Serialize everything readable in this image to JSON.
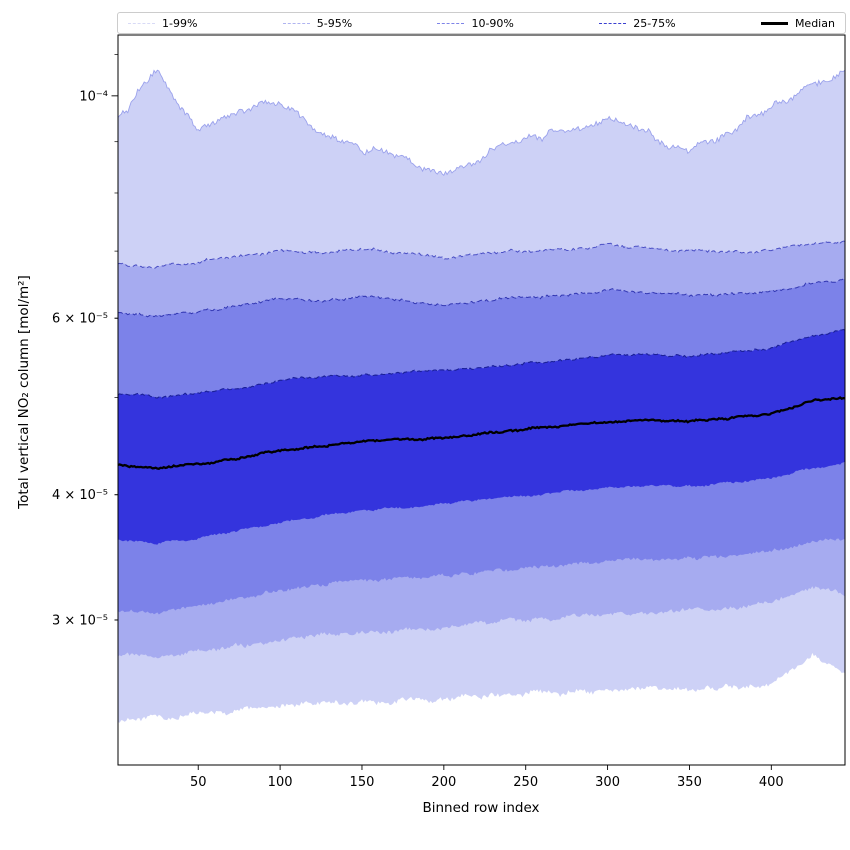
{
  "figure": {
    "background": "#ffffff"
  },
  "legend": {
    "items": [
      {
        "label": "1-99%",
        "color": "#d8daf6",
        "style": "dashed",
        "width": 1.6
      },
      {
        "label": "5-95%",
        "color": "#b0b4f0",
        "style": "dashed",
        "width": 1.6
      },
      {
        "label": "10-90%",
        "color": "#7e84e8",
        "style": "dashed",
        "width": 1.6
      },
      {
        "label": "25-75%",
        "color": "#3a3fd0",
        "style": "dashed",
        "width": 1.6
      },
      {
        "label": "Median",
        "color": "#000000",
        "style": "solid",
        "width": 3
      }
    ]
  },
  "chart_data": {
    "type": "area",
    "title": "",
    "xlabel": "Binned row index",
    "ylabel": "Total vertical NO₂ column [mol/m²]",
    "yscale": "log",
    "xlim": [
      1,
      445
    ],
    "ylim": [
      2.15e-05,
      0.000115
    ],
    "x_ticks": [
      50,
      100,
      150,
      200,
      250,
      300,
      350,
      400
    ],
    "y_ticks": [
      {
        "value": 0.0001,
        "label": "10⁻⁴",
        "major": true
      },
      {
        "value": 6e-05,
        "label": "6 × 10⁻⁵",
        "major": false
      },
      {
        "value": 4e-05,
        "label": "4 × 10⁻⁵",
        "major": false
      },
      {
        "value": 3e-05,
        "label": "3 × 10⁻⁵",
        "major": false
      }
    ],
    "y_minor_ticks": [
      3e-05,
      4e-05,
      5e-05,
      6e-05,
      7e-05,
      8e-05,
      9e-05,
      0.00011
    ],
    "grid": false,
    "legend_position": "top",
    "x": [
      1,
      25,
      50,
      75,
      100,
      125,
      150,
      175,
      200,
      225,
      250,
      275,
      300,
      325,
      350,
      375,
      400,
      425,
      445
    ],
    "series": [
      {
        "name": "p1",
        "percentile": 1,
        "values": [
          2.38e-05,
          2.39e-05,
          2.42e-05,
          2.44e-05,
          2.46e-05,
          2.47e-05,
          2.48e-05,
          2.49e-05,
          2.51e-05,
          2.52e-05,
          2.53e-05,
          2.54e-05,
          2.55e-05,
          2.56e-05,
          2.56e-05,
          2.57e-05,
          2.59e-05,
          2.77e-05,
          2.64e-05
        ]
      },
      {
        "name": "p5",
        "percentile": 5,
        "values": [
          2.77e-05,
          2.75e-05,
          2.8e-05,
          2.83e-05,
          2.87e-05,
          2.9e-05,
          2.92e-05,
          2.93e-05,
          2.95e-05,
          2.98e-05,
          3e-05,
          3.02e-05,
          3.04e-05,
          3.05e-05,
          3.07e-05,
          3.09e-05,
          3.12e-05,
          3.25e-05,
          3.18e-05
        ]
      },
      {
        "name": "p10",
        "percentile": 10,
        "values": [
          3.07e-05,
          3.05e-05,
          3.1e-05,
          3.15e-05,
          3.21e-05,
          3.25e-05,
          3.28e-05,
          3.3e-05,
          3.32e-05,
          3.35e-05,
          3.38e-05,
          3.41e-05,
          3.44e-05,
          3.45e-05,
          3.46e-05,
          3.48e-05,
          3.51e-05,
          3.6e-05,
          3.62e-05
        ]
      },
      {
        "name": "p25",
        "percentile": 25,
        "values": [
          3.6e-05,
          3.58e-05,
          3.62e-05,
          3.69e-05,
          3.75e-05,
          3.81e-05,
          3.86e-05,
          3.88e-05,
          3.92e-05,
          3.96e-05,
          3.99e-05,
          4.03e-05,
          4.07e-05,
          4.08e-05,
          4.08e-05,
          4.11e-05,
          4.15e-05,
          4.25e-05,
          4.3e-05
        ]
      },
      {
        "name": "p50",
        "percentile": 50,
        "values": [
          4.28e-05,
          4.25e-05,
          4.29e-05,
          4.35e-05,
          4.43e-05,
          4.47e-05,
          4.52e-05,
          4.54e-05,
          4.56e-05,
          4.6e-05,
          4.65e-05,
          4.69e-05,
          4.73e-05,
          4.75e-05,
          4.74e-05,
          4.77e-05,
          4.82e-05,
          4.96e-05,
          5e-05
        ]
      },
      {
        "name": "p75",
        "percentile": 75,
        "values": [
          5.05e-05,
          5.01e-05,
          5.05e-05,
          5.11e-05,
          5.2e-05,
          5.25e-05,
          5.26e-05,
          5.3e-05,
          5.32e-05,
          5.36e-05,
          5.41e-05,
          5.45e-05,
          5.51e-05,
          5.51e-05,
          5.5e-05,
          5.55e-05,
          5.6e-05,
          5.76e-05,
          5.84e-05
        ]
      },
      {
        "name": "p90",
        "percentile": 90,
        "values": [
          6.09e-05,
          6.03e-05,
          6.09e-05,
          6.18e-05,
          6.28e-05,
          6.25e-05,
          6.31e-05,
          6.25e-05,
          6.18e-05,
          6.25e-05,
          6.3e-05,
          6.32e-05,
          6.4e-05,
          6.37e-05,
          6.34e-05,
          6.34e-05,
          6.37e-05,
          6.49e-05,
          6.55e-05
        ]
      },
      {
        "name": "p95",
        "percentile": 95,
        "values": [
          6.81e-05,
          6.74e-05,
          6.83e-05,
          6.93e-05,
          7e-05,
          6.97e-05,
          7.03e-05,
          6.97e-05,
          6.88e-05,
          6.97e-05,
          7e-05,
          7.03e-05,
          7.1e-05,
          7.03e-05,
          7e-05,
          6.97e-05,
          7e-05,
          7.12e-05,
          7.16e-05
        ]
      },
      {
        "name": "p99",
        "percentile": 99,
        "values": [
          9.46e-05,
          0.000106,
          9.15e-05,
          9.68e-05,
          9.9e-05,
          9.15e-05,
          8.85e-05,
          8.66e-05,
          8.3e-05,
          8.75e-05,
          9.05e-05,
          9.25e-05,
          9.5e-05,
          9.15e-05,
          8.8e-05,
          9.25e-05,
          9.7e-05,
          0.000103,
          0.000106
        ]
      }
    ],
    "bands": [
      {
        "range": "1-99%",
        "lower": "p1",
        "upper": "p99",
        "fill": "#cdd1f6",
        "edge_color": "#9ba2ec",
        "edge_width": 0.9,
        "edge_dash": ""
      },
      {
        "range": "5-95%",
        "lower": "p5",
        "upper": "p95",
        "fill": "#a6abf0",
        "edge_color": "#4a4fc4",
        "edge_width": 1.0,
        "edge_dash": "5 3"
      },
      {
        "range": "10-90%",
        "lower": "p10",
        "upper": "p90",
        "fill": "#7c82e9",
        "edge_color": "#3136b2",
        "edge_width": 1.0,
        "edge_dash": "5 3"
      },
      {
        "range": "25-75%",
        "lower": "p25",
        "upper": "p75",
        "fill": "#3434dd",
        "edge_color": "#1b2099",
        "edge_width": 1.1,
        "edge_dash": "5 3"
      }
    ],
    "median_series": "p50",
    "median_color": "#000000",
    "median_width": 2.3,
    "jitter": {
      "p1": [
        0.01,
        0.013
      ],
      "p5": [
        0.008,
        0.01
      ],
      "p10": [
        0.007,
        0.008
      ],
      "p25": [
        0.004,
        0.005
      ],
      "p50": [
        0.0035,
        0.004
      ],
      "p75": [
        0.004,
        0.005
      ],
      "p90": [
        0.005,
        0.006
      ],
      "p95": [
        0.005,
        0.007
      ],
      "p99": [
        0.012,
        0.02
      ]
    }
  }
}
